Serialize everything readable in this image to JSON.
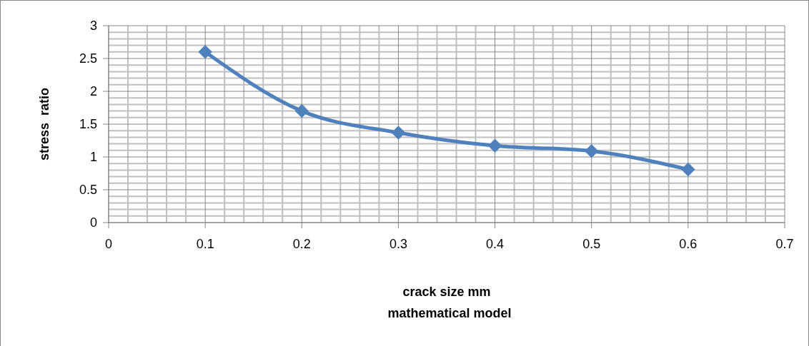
{
  "chart_data": {
    "type": "line",
    "xlabel": "crack size mm",
    "ylabel": "stress  ratio",
    "annotations": [
      "mathematical model"
    ],
    "x": [
      0.1,
      0.2,
      0.3,
      0.4,
      0.5,
      0.6
    ],
    "series": [
      {
        "color": "#4f81bd",
        "values": [
          2.6,
          1.7,
          1.37,
          1.17,
          1.09,
          0.81
        ]
      }
    ],
    "xlim": [
      0,
      0.7
    ],
    "xticks": [
      0,
      0.1,
      0.2,
      0.3,
      0.4,
      0.5,
      0.6,
      0.7
    ],
    "ylim": [
      0,
      3
    ],
    "yticks": [
      0,
      0.5,
      1,
      1.5,
      2,
      2.5,
      3
    ],
    "grid": true,
    "marker": "diamond"
  }
}
